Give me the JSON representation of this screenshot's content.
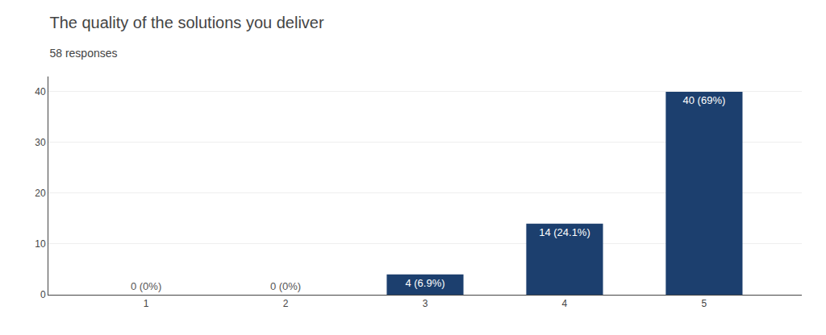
{
  "chart_data": {
    "type": "bar",
    "title": "The quality of the solutions you deliver",
    "subtitle": "58 responses",
    "categories": [
      1,
      2,
      3,
      4,
      5
    ],
    "values": [
      0,
      0,
      4,
      14,
      40
    ],
    "value_labels": [
      "0 (0%)",
      "0 (0%)",
      "4 (6.9%)",
      "14 (24.1%)",
      "40 (69%)"
    ],
    "data_labels": true,
    "color": "#1c3f6e",
    "ylim": [
      0,
      43
    ],
    "yticks": [
      0,
      10,
      20,
      30,
      40
    ],
    "grid": true
  }
}
